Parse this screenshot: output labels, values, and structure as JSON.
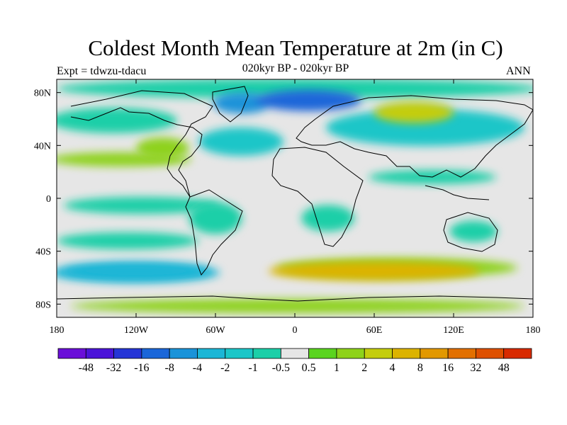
{
  "title": "Coldest Month Mean Temperature at 2m (in C)",
  "left_label": "Expt = tdwzu-tdacu",
  "center_label": "020kyr BP - 020kyr BP",
  "right_label": "ANN",
  "map": {
    "projection": "cylindrical-equidistant",
    "lon_range": [
      -180,
      180
    ],
    "lat_range": [
      -90,
      90
    ],
    "lon_ticks": [
      {
        "value": -180,
        "label": "180"
      },
      {
        "value": -120,
        "label": "120W"
      },
      {
        "value": -60,
        "label": "60W"
      },
      {
        "value": 0,
        "label": "0"
      },
      {
        "value": 60,
        "label": "60E"
      },
      {
        "value": 120,
        "label": "120E"
      },
      {
        "value": 180,
        "label": "180"
      }
    ],
    "lat_ticks": [
      {
        "value": 80,
        "label": "80N"
      },
      {
        "value": 40,
        "label": "40N"
      },
      {
        "value": 0,
        "label": "0"
      },
      {
        "value": -40,
        "label": "40S"
      },
      {
        "value": -80,
        "label": "80S"
      }
    ],
    "field_regions": [
      {
        "name": "north-atlantic-cooling",
        "level": 4,
        "lon": -40,
        "lat": 72,
        "rx": 22,
        "ry": 8
      },
      {
        "name": "arctic-cooling",
        "level": 3,
        "lon": 10,
        "lat": 74,
        "rx": 40,
        "ry": 8
      },
      {
        "name": "siberia-warming",
        "level": 11,
        "lon": 90,
        "lat": 65,
        "rx": 30,
        "ry": 8
      },
      {
        "name": "north-america-warming",
        "level": 10,
        "lon": -100,
        "lat": 38,
        "rx": 20,
        "ry": 8
      },
      {
        "name": "south-america-cooling",
        "level": 7,
        "lon": -60,
        "lat": -15,
        "rx": 20,
        "ry": 12
      },
      {
        "name": "africa-cooling",
        "level": 7,
        "lon": 25,
        "lat": -15,
        "rx": 20,
        "ry": 10
      },
      {
        "name": "australia-cooling",
        "level": 7,
        "lon": 135,
        "lat": -25,
        "rx": 18,
        "ry": 8
      },
      {
        "name": "southern-ocean-warming",
        "level": 12,
        "lon": 60,
        "lat": -55,
        "rx": 80,
        "ry": 7
      },
      {
        "name": "southern-ocean-cooling",
        "level": 5,
        "lon": -120,
        "lat": -55,
        "rx": 55,
        "ry": 6
      }
    ]
  },
  "colorbar": {
    "colors": [
      "#6a0fd8",
      "#4b14d8",
      "#2535d6",
      "#1a66d9",
      "#1a93d9",
      "#1cb6d6",
      "#1cc6c8",
      "#1ccfa8",
      "#e6e6e6",
      "#5ad41f",
      "#8ed21a",
      "#c4cd0e",
      "#dcb300",
      "#e29800",
      "#e27000",
      "#de5000",
      "#d82a00"
    ],
    "labels": [
      "-48",
      "-32",
      "-16",
      "-8",
      "-4",
      "-2",
      "-1",
      "-0.5",
      "0.5",
      "1",
      "2",
      "4",
      "8",
      "16",
      "32",
      "48"
    ]
  }
}
